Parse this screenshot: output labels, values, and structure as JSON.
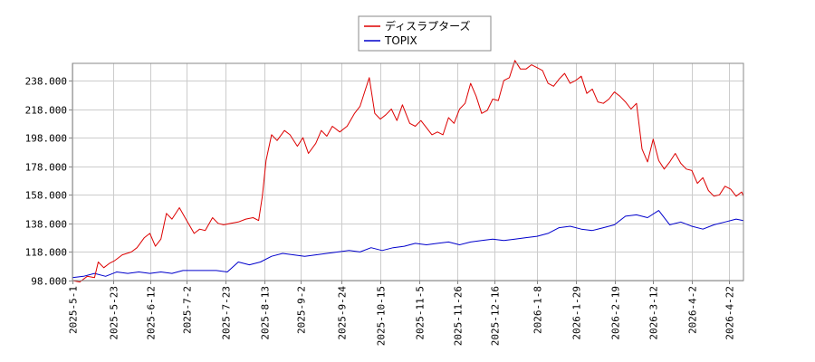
{
  "chart_data": {
    "type": "line",
    "title": "",
    "xlabel": "",
    "ylabel": "",
    "ylim": [
      98,
      250
    ],
    "y_ticks": [
      98,
      118,
      138,
      158,
      178,
      198,
      218,
      238
    ],
    "y_tick_labels": [
      "98.000",
      "118.000",
      "138.000",
      "158.000",
      "178.000",
      "198.000",
      "218.000",
      "238.000"
    ],
    "x_range": [
      "2025-05-01",
      "2026-04-30"
    ],
    "x_ticks": [
      "2025-5-1",
      "2025-5-23",
      "2025-6-12",
      "2025-7-2",
      "2025-7-23",
      "2025-8-13",
      "2025-9-2",
      "2025-9-24",
      "2025-10-15",
      "2025-11-5",
      "2025-11-26",
      "2025-12-16",
      "2026-1-8",
      "2026-1-29",
      "2026-2-19",
      "2026-3-12",
      "2026-4-2",
      "2026-4-22"
    ],
    "grid": true,
    "legend_position": "top-center",
    "series": [
      {
        "name": "ディスラプターズ",
        "color": "#dd0000",
        "points": [
          [
            "2025-05-01",
            98
          ],
          [
            "2025-05-05",
            97
          ],
          [
            "2025-05-09",
            101
          ],
          [
            "2025-05-13",
            100
          ],
          [
            "2025-05-15",
            111
          ],
          [
            "2025-05-18",
            107
          ],
          [
            "2025-05-21",
            110
          ],
          [
            "2025-05-24",
            112
          ],
          [
            "2025-05-28",
            116
          ],
          [
            "2025-06-02",
            118
          ],
          [
            "2025-06-05",
            121
          ],
          [
            "2025-06-09",
            128
          ],
          [
            "2025-06-12",
            131
          ],
          [
            "2025-06-15",
            122
          ],
          [
            "2025-06-18",
            127
          ],
          [
            "2025-06-21",
            145
          ],
          [
            "2025-06-24",
            141
          ],
          [
            "2025-06-28",
            149
          ],
          [
            "2025-07-02",
            140
          ],
          [
            "2025-07-06",
            131
          ],
          [
            "2025-07-09",
            134
          ],
          [
            "2025-07-12",
            133
          ],
          [
            "2025-07-16",
            142
          ],
          [
            "2025-07-19",
            138
          ],
          [
            "2025-07-22",
            137
          ],
          [
            "2025-07-26",
            138
          ],
          [
            "2025-07-30",
            139
          ],
          [
            "2025-08-03",
            141
          ],
          [
            "2025-08-07",
            142
          ],
          [
            "2025-08-10",
            140
          ],
          [
            "2025-08-12",
            157
          ],
          [
            "2025-08-14",
            182
          ],
          [
            "2025-08-17",
            200
          ],
          [
            "2025-08-20",
            196
          ],
          [
            "2025-08-24",
            203
          ],
          [
            "2025-08-27",
            200
          ],
          [
            "2025-08-31",
            192
          ],
          [
            "2025-09-03",
            198
          ],
          [
            "2025-09-06",
            187
          ],
          [
            "2025-09-10",
            194
          ],
          [
            "2025-09-13",
            203
          ],
          [
            "2025-09-16",
            199
          ],
          [
            "2025-09-19",
            206
          ],
          [
            "2025-09-23",
            202
          ],
          [
            "2025-09-27",
            206
          ],
          [
            "2025-10-01",
            215
          ],
          [
            "2025-10-04",
            220
          ],
          [
            "2025-10-07",
            232
          ],
          [
            "2025-10-09",
            240
          ],
          [
            "2025-10-12",
            215
          ],
          [
            "2025-10-15",
            211
          ],
          [
            "2025-10-18",
            214
          ],
          [
            "2025-10-21",
            218
          ],
          [
            "2025-10-24",
            210
          ],
          [
            "2025-10-27",
            221
          ],
          [
            "2025-10-31",
            208
          ],
          [
            "2025-11-03",
            206
          ],
          [
            "2025-11-06",
            210
          ],
          [
            "2025-11-09",
            205
          ],
          [
            "2025-11-12",
            200
          ],
          [
            "2025-11-15",
            202
          ],
          [
            "2025-11-18",
            200
          ],
          [
            "2025-11-21",
            212
          ],
          [
            "2025-11-24",
            208
          ],
          [
            "2025-11-27",
            218
          ],
          [
            "2025-11-30",
            222
          ],
          [
            "2025-12-03",
            236
          ],
          [
            "2025-12-06",
            227
          ],
          [
            "2025-12-09",
            215
          ],
          [
            "2025-12-12",
            217
          ],
          [
            "2025-12-15",
            225
          ],
          [
            "2025-12-18",
            224
          ],
          [
            "2025-12-21",
            238
          ],
          [
            "2025-12-24",
            240
          ],
          [
            "2025-12-27",
            252
          ],
          [
            "2025-12-30",
            246
          ],
          [
            "2026-01-02",
            246
          ],
          [
            "2026-01-05",
            249
          ],
          [
            "2026-01-08",
            247
          ],
          [
            "2026-01-11",
            245
          ],
          [
            "2026-01-14",
            236
          ],
          [
            "2026-01-17",
            234
          ],
          [
            "2026-01-20",
            239
          ],
          [
            "2026-01-23",
            243
          ],
          [
            "2026-01-26",
            236
          ],
          [
            "2026-01-29",
            238
          ],
          [
            "2026-02-01",
            241
          ],
          [
            "2026-02-04",
            229
          ],
          [
            "2026-02-07",
            232
          ],
          [
            "2026-02-10",
            223
          ],
          [
            "2026-02-13",
            222
          ],
          [
            "2026-02-16",
            225
          ],
          [
            "2026-02-19",
            230
          ],
          [
            "2026-02-22",
            227
          ],
          [
            "2026-02-25",
            223
          ],
          [
            "2026-02-28",
            218
          ],
          [
            "2026-03-03",
            222
          ],
          [
            "2026-03-06",
            190
          ],
          [
            "2026-03-09",
            181
          ],
          [
            "2026-03-12",
            197
          ],
          [
            "2026-03-15",
            182
          ],
          [
            "2026-03-18",
            176
          ],
          [
            "2026-03-21",
            181
          ],
          [
            "2026-03-24",
            187
          ],
          [
            "2026-03-27",
            180
          ],
          [
            "2026-03-30",
            176
          ],
          [
            "2026-04-02",
            175
          ],
          [
            "2026-04-05",
            166
          ],
          [
            "2026-04-08",
            170
          ],
          [
            "2026-04-11",
            161
          ],
          [
            "2026-04-14",
            157
          ],
          [
            "2026-04-17",
            158
          ],
          [
            "2026-04-20",
            164
          ],
          [
            "2026-04-23",
            162
          ],
          [
            "2026-04-26",
            157
          ],
          [
            "2026-04-29",
            160
          ],
          [
            "2026-05-02",
            157
          ],
          [
            "2026-05-05",
            159
          ],
          [
            "2026-05-08",
            154
          ],
          [
            "2026-05-11",
            153
          ],
          [
            "2026-05-14",
            155
          ],
          [
            "2026-05-17",
            153
          ]
        ]
      },
      {
        "name": "TOPIX",
        "color": "#0000cc",
        "points": [
          [
            "2025-05-01",
            100
          ],
          [
            "2025-05-07",
            101
          ],
          [
            "2025-05-13",
            103
          ],
          [
            "2025-05-19",
            101
          ],
          [
            "2025-05-25",
            104
          ],
          [
            "2025-05-31",
            103
          ],
          [
            "2025-06-06",
            104
          ],
          [
            "2025-06-12",
            103
          ],
          [
            "2025-06-18",
            104
          ],
          [
            "2025-06-24",
            103
          ],
          [
            "2025-06-30",
            105
          ],
          [
            "2025-07-06",
            105
          ],
          [
            "2025-07-12",
            105
          ],
          [
            "2025-07-18",
            105
          ],
          [
            "2025-07-24",
            104
          ],
          [
            "2025-07-30",
            111
          ],
          [
            "2025-08-05",
            109
          ],
          [
            "2025-08-11",
            111
          ],
          [
            "2025-08-17",
            115
          ],
          [
            "2025-08-23",
            117
          ],
          [
            "2025-08-29",
            116
          ],
          [
            "2025-09-04",
            115
          ],
          [
            "2025-09-10",
            116
          ],
          [
            "2025-09-16",
            117
          ],
          [
            "2025-09-22",
            118
          ],
          [
            "2025-09-28",
            119
          ],
          [
            "2025-10-04",
            118
          ],
          [
            "2025-10-10",
            121
          ],
          [
            "2025-10-16",
            119
          ],
          [
            "2025-10-22",
            121
          ],
          [
            "2025-10-28",
            122
          ],
          [
            "2025-11-03",
            124
          ],
          [
            "2025-11-09",
            123
          ],
          [
            "2025-11-15",
            124
          ],
          [
            "2025-11-21",
            125
          ],
          [
            "2025-11-27",
            123
          ],
          [
            "2025-12-03",
            125
          ],
          [
            "2025-12-09",
            126
          ],
          [
            "2025-12-15",
            127
          ],
          [
            "2025-12-21",
            126
          ],
          [
            "2025-12-27",
            127
          ],
          [
            "2026-01-02",
            128
          ],
          [
            "2026-01-08",
            129
          ],
          [
            "2026-01-14",
            131
          ],
          [
            "2026-01-20",
            135
          ],
          [
            "2026-01-26",
            136
          ],
          [
            "2026-02-01",
            134
          ],
          [
            "2026-02-07",
            133
          ],
          [
            "2026-02-13",
            135
          ],
          [
            "2026-02-19",
            137
          ],
          [
            "2026-02-25",
            143
          ],
          [
            "2026-03-03",
            144
          ],
          [
            "2026-03-09",
            142
          ],
          [
            "2026-03-15",
            147
          ],
          [
            "2026-03-21",
            137
          ],
          [
            "2026-03-27",
            139
          ],
          [
            "2026-04-02",
            136
          ],
          [
            "2026-04-08",
            134
          ],
          [
            "2026-04-14",
            137
          ],
          [
            "2026-04-20",
            139
          ],
          [
            "2026-04-26",
            141
          ],
          [
            "2026-05-02",
            140
          ],
          [
            "2026-05-08",
            142
          ],
          [
            "2026-05-14",
            140
          ],
          [
            "2026-05-18",
            139
          ]
        ]
      }
    ]
  }
}
